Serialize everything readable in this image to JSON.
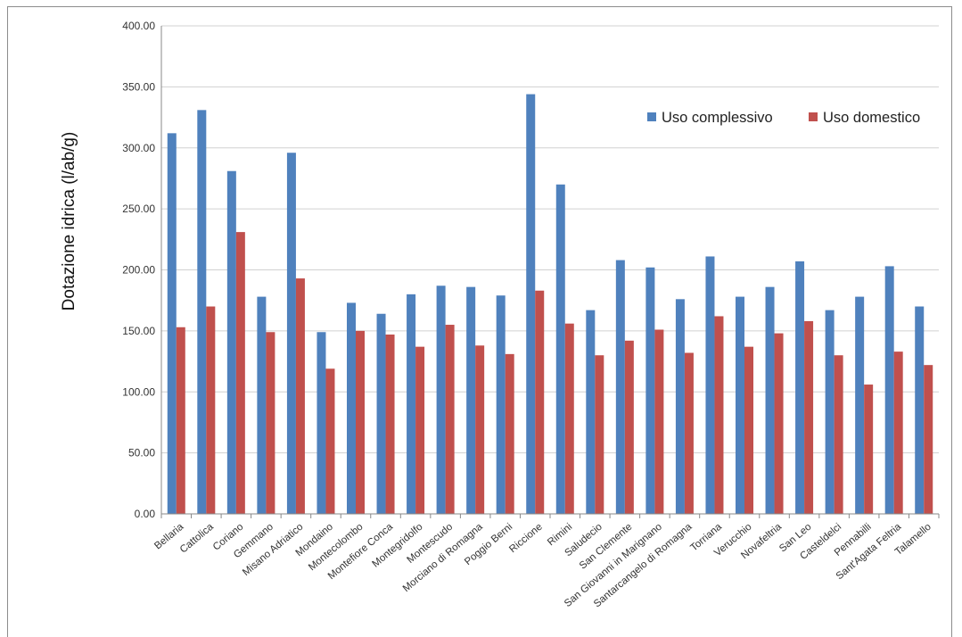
{
  "chart_data": {
    "type": "bar",
    "title": "",
    "xlabel": "",
    "ylabel": "Dotazione idrica (l/ab/g)",
    "ylim": [
      0,
      400
    ],
    "yticks": [
      "0.00",
      "50.00",
      "100.00",
      "150.00",
      "200.00",
      "250.00",
      "300.00",
      "350.00",
      "400.00"
    ],
    "grid": true,
    "legend_position": "top-right",
    "categories": [
      "Bellaria",
      "Cattolica",
      "Coriano",
      "Gemmano",
      "Misano Adriatico",
      "Mondaino",
      "Montecolombo",
      "Montefiore Conca",
      "Montegridolfo",
      "Montescudo",
      "Morciano di Romagna",
      "Poggio Berni",
      "Riccione",
      "Rimini",
      "Saludecio",
      "San Clemente",
      "San Giovanni in Marignano",
      "Santarcangelo di Romagna",
      "Torriana",
      "Verucchio",
      "Novafeltria",
      "San Leo",
      "Casteldelci",
      "Pennabilli",
      "Sant'Agata Feltria",
      "Talamello"
    ],
    "series": [
      {
        "name": "Uso complessivo",
        "color": "#4f81bd",
        "values": [
          312,
          331,
          281,
          178,
          296,
          149,
          173,
          164,
          180,
          187,
          186,
          179,
          344,
          270,
          167,
          208,
          202,
          176,
          211,
          178,
          186,
          207,
          167,
          178,
          203,
          170
        ]
      },
      {
        "name": "Uso domestico",
        "color": "#c0504d",
        "values": [
          153,
          170,
          231,
          149,
          193,
          119,
          150,
          147,
          137,
          155,
          138,
          131,
          183,
          156,
          130,
          142,
          151,
          132,
          162,
          137,
          148,
          158,
          130,
          106,
          133,
          122
        ]
      }
    ]
  }
}
